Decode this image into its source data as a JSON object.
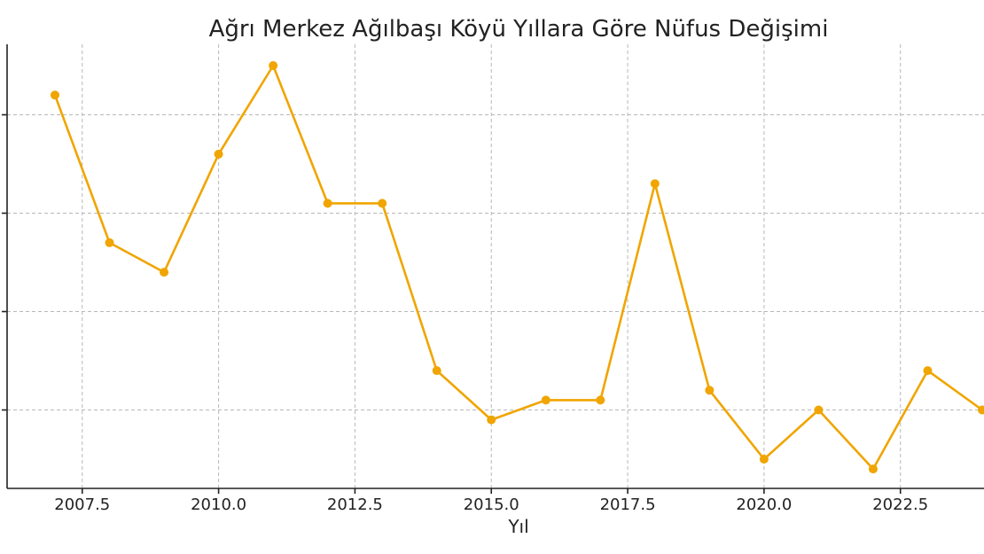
{
  "chart_data": {
    "type": "line",
    "title": "Ağrı Merkez Ağılbaşı Köyü Yıllara Göre Nüfus Değişimi",
    "xlabel": "Yıl",
    "ylabel": "",
    "color": "#f0a500",
    "grid": true,
    "xlim": [
      2006.5,
      2024
    ],
    "ylim": [
      45,
      90
    ],
    "xticks": [
      2007.5,
      2010.0,
      2012.5,
      2015.0,
      2017.5,
      2020.0,
      2022.5
    ],
    "xtick_labels": [
      "2007.5",
      "2010.0",
      "2012.5",
      "2015.0",
      "2017.5",
      "2020.0",
      "2022.5"
    ],
    "yticks": [
      50,
      60,
      70,
      80
    ],
    "series": [
      {
        "x": [
          2007,
          2008,
          2009,
          2010,
          2011,
          2012,
          2013,
          2014,
          2015,
          2016,
          2017,
          2018,
          2019,
          2020,
          2021,
          2022,
          2023,
          2024
        ],
        "values": [
          82,
          67,
          64,
          76,
          85,
          71,
          71,
          54,
          49,
          51,
          51,
          73,
          52,
          45,
          50,
          44,
          54,
          50
        ]
      }
    ]
  }
}
